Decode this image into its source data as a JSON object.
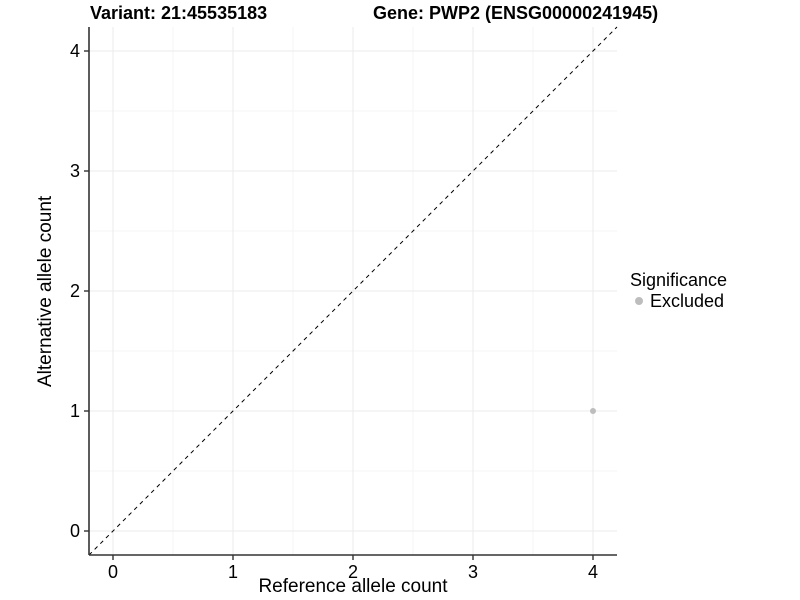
{
  "titles": {
    "variant": "Variant: 21:45535183",
    "gene": "Gene: PWP2 (ENSG00000241945)"
  },
  "chart_data": {
    "type": "scatter",
    "xlabel": "Reference allele count",
    "ylabel": "Alternative allele count",
    "xlim": [
      -0.2,
      4.2
    ],
    "ylim": [
      -0.2,
      4.2
    ],
    "xticks": [
      0,
      1,
      2,
      3,
      4
    ],
    "yticks": [
      0,
      1,
      2,
      3,
      4
    ],
    "grid": true,
    "minor_grid": true,
    "reference_line": {
      "kind": "identity",
      "x1": -0.2,
      "y1": -0.2,
      "x2": 4.2,
      "y2": 4.2,
      "style": "dashed",
      "color": "#000000"
    },
    "series": [
      {
        "name": "Excluded",
        "color": "#bdbdbd",
        "points": [
          {
            "x": 4,
            "y": 1
          }
        ]
      }
    ],
    "legend": {
      "position": "right",
      "title": "Significance",
      "items": [
        {
          "label": "Excluded",
          "color": "#bdbdbd"
        }
      ]
    }
  },
  "colors": {
    "background": "#ffffff",
    "text": "#000000",
    "axis_line": "#333333",
    "tick_mark": "#333333",
    "grid_major": "#ebebeb",
    "grid_minor": "#f4f4f4",
    "point": "#bdbdbd"
  }
}
